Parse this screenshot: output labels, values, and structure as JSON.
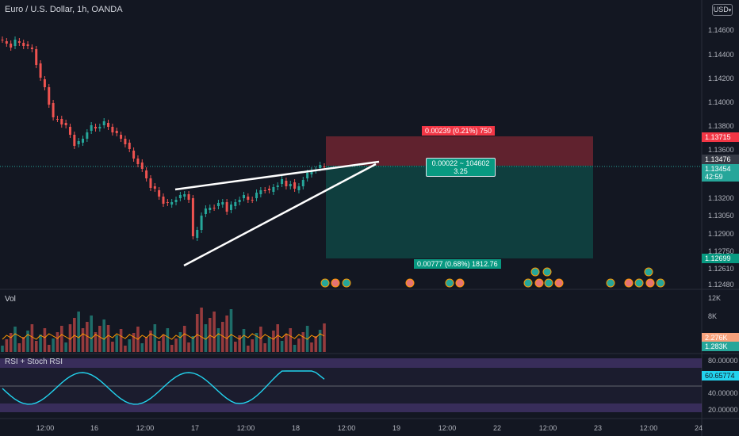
{
  "header": {
    "symbol_title": "Euro / U.S. Dollar, 1h, OANDA",
    "currency_button": "USD",
    "volume_label": "Vol",
    "rsi_label": "RSI + Stoch RSI"
  },
  "price_axis": {
    "ticks": [
      "1.14600",
      "1.14400",
      "1.14200",
      "1.14000",
      "1.13800",
      "1.13600",
      "1.13200",
      "1.13050",
      "1.12900",
      "1.12750",
      "1.12610",
      "1.12480"
    ],
    "badges": {
      "stop": "1.13715",
      "last": "1.13476",
      "current": "1.13454",
      "countdown": "42:59",
      "target": "1.12699"
    }
  },
  "volume_axis": {
    "ticks": [
      "12K",
      "8K"
    ],
    "badges": {
      "volume": "2.276K",
      "volume_ma": "1.283K"
    }
  },
  "rsi_axis": {
    "ticks": [
      "80.00000",
      "40.00000",
      "20.00000"
    ],
    "value_badge": "60.65774"
  },
  "time_axis": [
    "12:00",
    "16",
    "12:00",
    "17",
    "12:00",
    "18",
    "12:00",
    "19",
    "12:00",
    "22",
    "12:00",
    "23",
    "12:00",
    "24"
  ],
  "position_tool": {
    "stop_label": "0.00239 (0.21%) 750",
    "mid_label_line1": "0.00022 ~ 104602",
    "mid_label_line2": "3.25",
    "target_label": "0.00777 (0.68%) 1812.76"
  },
  "colors": {
    "background": "#131722",
    "up": "#26a69a",
    "down": "#ef5350",
    "stop_zone": "#f23645",
    "target_zone": "#089981",
    "rsi_line": "#22d3ee",
    "rsi_band": "#7e57c2",
    "volume_ma": "#ff9800"
  },
  "icons": [
    "calendar-event-icon",
    "flag-us-icon"
  ]
}
